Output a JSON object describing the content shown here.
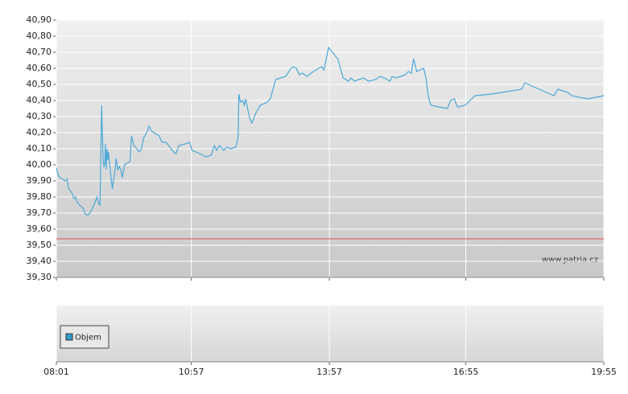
{
  "chart_data": {
    "type": "line",
    "x": [
      "08:01",
      "08:03",
      "08:06",
      "08:12",
      "08:15",
      "08:17",
      "08:19",
      "08:22",
      "08:24",
      "08:26",
      "08:28",
      "08:31",
      "08:34",
      "08:36",
      "08:38",
      "08:40",
      "08:43",
      "08:46",
      "08:50",
      "08:54",
      "08:56",
      "08:58",
      "09:00",
      "09:02",
      "09:03",
      "09:04",
      "09:05",
      "09:06",
      "09:07",
      "09:08",
      "09:09",
      "09:11",
      "09:14",
      "09:17",
      "09:19",
      "09:21",
      "09:23",
      "09:25",
      "09:27",
      "09:30",
      "09:33",
      "09:37",
      "09:39",
      "09:42",
      "09:46",
      "09:49",
      "09:52",
      "09:55",
      "09:59",
      "10:02",
      "10:05",
      "10:08",
      "10:12",
      "10:15",
      "10:19",
      "10:24",
      "10:29",
      "10:34",
      "10:37",
      "10:41",
      "10:49",
      "10:55",
      "10:58",
      "11:08",
      "11:16",
      "11:23",
      "11:27",
      "11:30",
      "11:34",
      "11:39",
      "11:44",
      "11:48",
      "11:55",
      "11:58",
      "11:59",
      "12:01",
      "12:04",
      "12:06",
      "12:08",
      "12:10",
      "12:13",
      "12:16",
      "12:21",
      "12:27",
      "12:36",
      "12:40",
      "12:47",
      "13:00",
      "13:03",
      "13:07",
      "13:10",
      "13:14",
      "13:18",
      "13:22",
      "13:28",
      "13:33",
      "13:43",
      "13:47",
      "13:50",
      "13:53",
      "13:56",
      "14:06",
      "14:08",
      "14:15",
      "14:19",
      "14:22",
      "14:25",
      "14:30",
      "14:35",
      "14:42",
      "14:48",
      "14:57",
      "15:03",
      "15:09",
      "15:16",
      "15:19",
      "15:24",
      "15:30",
      "15:36",
      "15:40",
      "15:44",
      "15:47",
      "15:51",
      "15:55",
      "16:00",
      "16:03",
      "16:06",
      "16:08",
      "16:10",
      "16:20",
      "16:31",
      "16:35",
      "16:40",
      "16:44",
      "16:54",
      "17:07",
      "17:28",
      "18:08",
      "18:12",
      "18:21",
      "18:50",
      "18:55",
      "19:08",
      "19:13",
      "19:34",
      "19:55"
    ],
    "values": [
      39.98,
      39.94,
      39.92,
      39.9,
      39.91,
      39.85,
      39.84,
      39.82,
      39.79,
      39.8,
      39.77,
      39.75,
      39.74,
      39.73,
      39.7,
      39.69,
      39.69,
      39.71,
      39.75,
      39.8,
      39.76,
      39.75,
      40.37,
      40.03,
      39.99,
      40.0,
      40.13,
      39.97,
      40.1,
      40.03,
      40.08,
      39.98,
      39.85,
      39.95,
      40.04,
      39.97,
      39.99,
      39.97,
      39.92,
      40.0,
      40.01,
      40.02,
      40.18,
      40.12,
      40.1,
      40.08,
      40.1,
      40.17,
      40.2,
      40.24,
      40.21,
      40.2,
      40.19,
      40.18,
      40.14,
      40.14,
      40.11,
      40.08,
      40.07,
      40.12,
      40.13,
      40.14,
      40.09,
      40.07,
      40.05,
      40.06,
      40.12,
      40.09,
      40.12,
      40.09,
      40.11,
      40.1,
      40.11,
      40.17,
      40.44,
      40.39,
      40.4,
      40.37,
      40.41,
      40.36,
      40.29,
      40.26,
      40.32,
      40.37,
      40.39,
      40.41,
      40.53,
      40.55,
      40.57,
      40.6,
      40.61,
      40.6,
      40.56,
      40.57,
      40.55,
      40.57,
      40.6,
      40.61,
      40.59,
      40.66,
      40.73,
      40.67,
      40.66,
      40.54,
      40.53,
      40.52,
      40.54,
      40.52,
      40.53,
      40.54,
      40.52,
      40.53,
      40.55,
      40.54,
      40.52,
      40.55,
      40.54,
      40.55,
      40.56,
      40.58,
      40.57,
      40.66,
      40.58,
      40.59,
      40.6,
      40.54,
      40.43,
      40.39,
      40.37,
      40.36,
      40.35,
      40.4,
      40.41,
      40.36,
      40.37,
      40.43,
      40.44,
      40.47,
      40.51,
      40.49,
      40.43,
      40.47,
      40.45,
      40.43,
      40.41,
      40.43
    ],
    "color": "#4aa8d8",
    "xlim": [
      "08:01",
      "19:55"
    ],
    "xticks": [
      "08:01",
      "10:57",
      "13:57",
      "16:55",
      "19:55"
    ],
    "ylim": [
      39.3,
      40.9
    ],
    "yticks": [
      {
        "value": 39.3,
        "label": "39,30"
      },
      {
        "value": 39.4,
        "label": "39,40"
      },
      {
        "value": 39.5,
        "label": "39,50"
      },
      {
        "value": 39.6,
        "label": "39,60"
      },
      {
        "value": 39.7,
        "label": "39,70"
      },
      {
        "value": 39.8,
        "label": "39,80"
      },
      {
        "value": 39.9,
        "label": "39,90"
      },
      {
        "value": 40.0,
        "label": "40,00"
      },
      {
        "value": 40.1,
        "label": "40,10"
      },
      {
        "value": 40.2,
        "label": "40,20"
      },
      {
        "value": 40.3,
        "label": "40,30"
      },
      {
        "value": 40.4,
        "label": "40,40"
      },
      {
        "value": 40.5,
        "label": "40,50"
      },
      {
        "value": 40.6,
        "label": "40,60"
      },
      {
        "value": 40.7,
        "label": "40,70"
      },
      {
        "value": 40.8,
        "label": "40,80"
      },
      {
        "value": 40.9,
        "label": "40,90"
      }
    ],
    "grid": true,
    "reference_line": {
      "value": 39.54,
      "color": "#e05050"
    },
    "watermark": "www.patria.cz",
    "volume_legend": {
      "name": "Objem",
      "color": "#3399cc"
    }
  }
}
